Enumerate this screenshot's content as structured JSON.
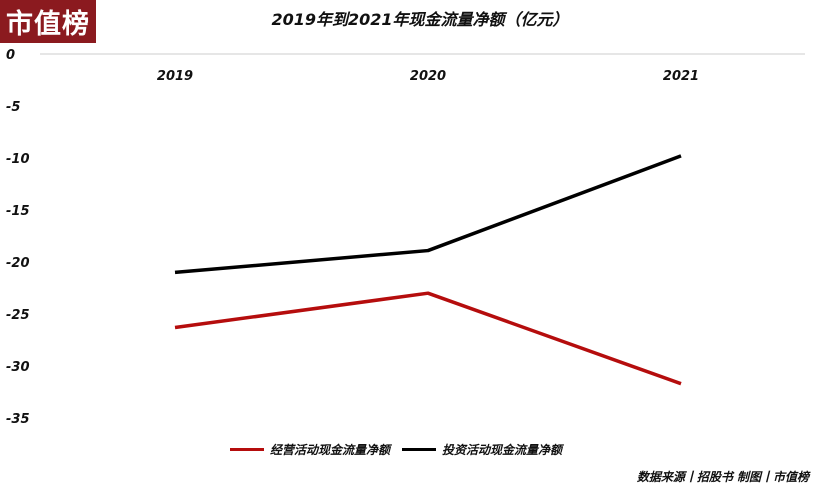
{
  "logo": "市值榜",
  "source": "数据来源丨招股书 制图丨市值榜",
  "chart_data": {
    "type": "line",
    "title": "2019年到2021年现金流量净额（亿元）",
    "categories": [
      "2019",
      "2020",
      "2021"
    ],
    "y_ticks": [
      "0",
      "-5",
      "-10",
      "-15",
      "-20",
      "-25",
      "-30",
      "-35"
    ],
    "ylim": [
      -35,
      0
    ],
    "series": [
      {
        "name": "经营活动现金流量净额",
        "color": "#b50d0d",
        "values": [
          -26.3,
          -23.0,
          -31.7
        ]
      },
      {
        "name": "投资活动现金流量净额",
        "color": "#000000",
        "values": [
          -21.0,
          -18.9,
          -9.8
        ]
      }
    ],
    "legend_position": "bottom-center"
  }
}
